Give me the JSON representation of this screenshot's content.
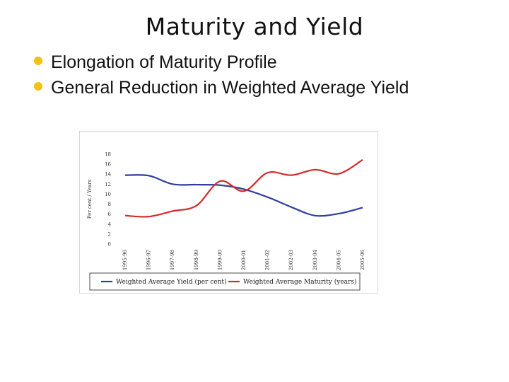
{
  "slide": {
    "title": "Maturity and Yield",
    "bullets": [
      "Elongation of Maturity Profile",
      "General Reduction in Weighted Average Yield"
    ],
    "bullet_color": "#f2c20f"
  },
  "chart_data": {
    "type": "line",
    "categories": [
      "1995-96",
      "1996-97",
      "1997-98",
      "1998-99",
      "1999-00",
      "2000-01",
      "2001-02",
      "2002-03",
      "2003-04",
      "2004-05",
      "2005-06"
    ],
    "ylabel": "Per cent / Years",
    "ylim": [
      0,
      18
    ],
    "yticks": [
      0,
      2,
      4,
      6,
      8,
      10,
      12,
      14,
      16,
      18
    ],
    "grid": false,
    "legend_position": "bottom",
    "series": [
      {
        "name": "Weighted Average Yield (per cent)",
        "color": "#2e3f9e",
        "values": [
          13.8,
          13.7,
          12.0,
          11.9,
          11.8,
          11.0,
          9.4,
          7.4,
          5.7,
          6.1,
          7.3
        ]
      },
      {
        "name": "Weighted Average Maturity (years)",
        "color": "#d42a2a",
        "values": [
          5.7,
          5.5,
          6.6,
          7.7,
          12.6,
          10.6,
          14.3,
          13.8,
          14.9,
          14.1,
          16.9
        ]
      }
    ]
  }
}
